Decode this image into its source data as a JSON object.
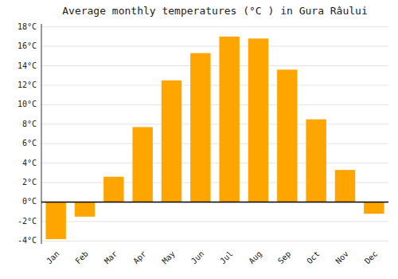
{
  "chart_data": {
    "type": "bar",
    "title": "Average monthly temperatures (°C ) in Gura Râului",
    "categories": [
      "Jan",
      "Feb",
      "Mar",
      "Apr",
      "May",
      "Jun",
      "Jul",
      "Aug",
      "Sep",
      "Oct",
      "Nov",
      "Dec"
    ],
    "values": [
      -3.8,
      -1.5,
      2.6,
      7.7,
      12.5,
      15.3,
      17.0,
      16.8,
      13.6,
      8.5,
      3.3,
      -1.2
    ],
    "color": "#FFA500",
    "ylim": [
      -4.3,
      18.3
    ],
    "yticks": [
      {
        "value": -4,
        "label": "-4°C"
      },
      {
        "value": -2,
        "label": "-2°C"
      },
      {
        "value": 0,
        "label": "0°C"
      },
      {
        "value": 2,
        "label": "2°C"
      },
      {
        "value": 4,
        "label": "4°C"
      },
      {
        "value": 6,
        "label": "6°C"
      },
      {
        "value": 8,
        "label": "8°C"
      },
      {
        "value": 10,
        "label": "10°C"
      },
      {
        "value": 12,
        "label": "12°C"
      },
      {
        "value": 14,
        "label": "14°C"
      },
      {
        "value": 16,
        "label": "16°C"
      },
      {
        "value": 18,
        "label": "18°C"
      }
    ],
    "grid": true
  }
}
